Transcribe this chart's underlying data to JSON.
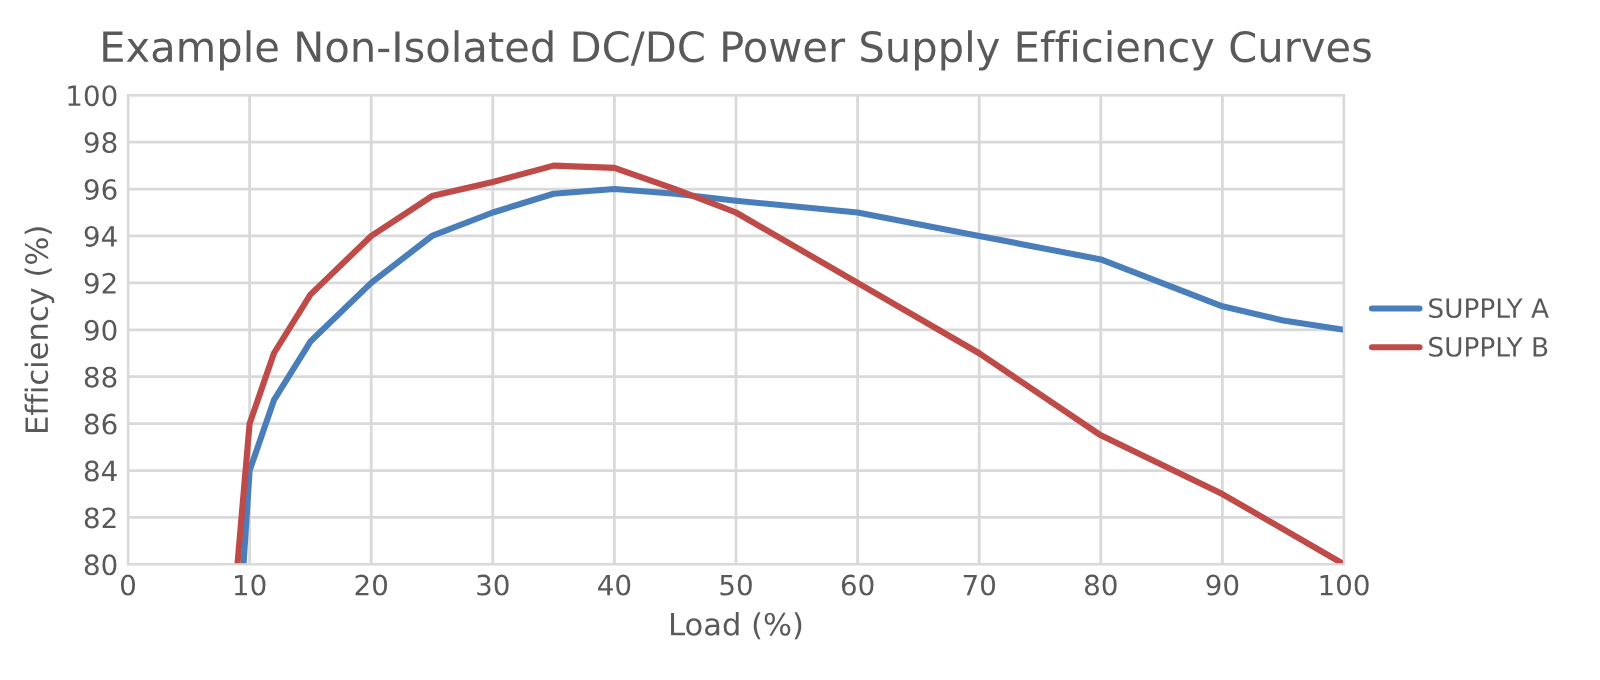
{
  "chart_data": {
    "type": "line",
    "title": "Example Non-Isolated DC/DC Power Supply Efficiency Curves",
    "xlabel": "Load (%)",
    "ylabel": "Efficiency (%)",
    "xlim": [
      0,
      100
    ],
    "xticks": [
      0,
      10,
      20,
      30,
      40,
      50,
      60,
      70,
      80,
      90,
      100
    ],
    "ylim": [
      80,
      100
    ],
    "yticks": [
      80,
      82,
      84,
      86,
      88,
      90,
      92,
      94,
      96,
      98,
      100
    ],
    "grid": true,
    "legend": "right",
    "marker": "none",
    "line_style": "solid",
    "series": [
      {
        "name": "SUPPLY A",
        "color": "#4a7ebb",
        "x": [
          9.5,
          10,
          12,
          15,
          20,
          25,
          30,
          35,
          40,
          45,
          50,
          60,
          70,
          80,
          85,
          90,
          95,
          100
        ],
        "values": [
          80,
          84,
          87,
          89.5,
          92,
          94,
          95,
          95.8,
          96,
          95.8,
          95.5,
          95,
          94,
          93,
          92,
          91,
          90.4,
          90
        ]
      },
      {
        "name": "SUPPLY B",
        "color": "#be4b48",
        "x": [
          9,
          10,
          12,
          15,
          20,
          25,
          30,
          35,
          40,
          45,
          50,
          60,
          70,
          80,
          90,
          100
        ],
        "values": [
          80,
          86,
          89,
          91.5,
          94,
          95.7,
          96.3,
          97,
          96.9,
          96,
          95,
          92,
          89,
          85.5,
          83,
          80
        ]
      }
    ]
  }
}
